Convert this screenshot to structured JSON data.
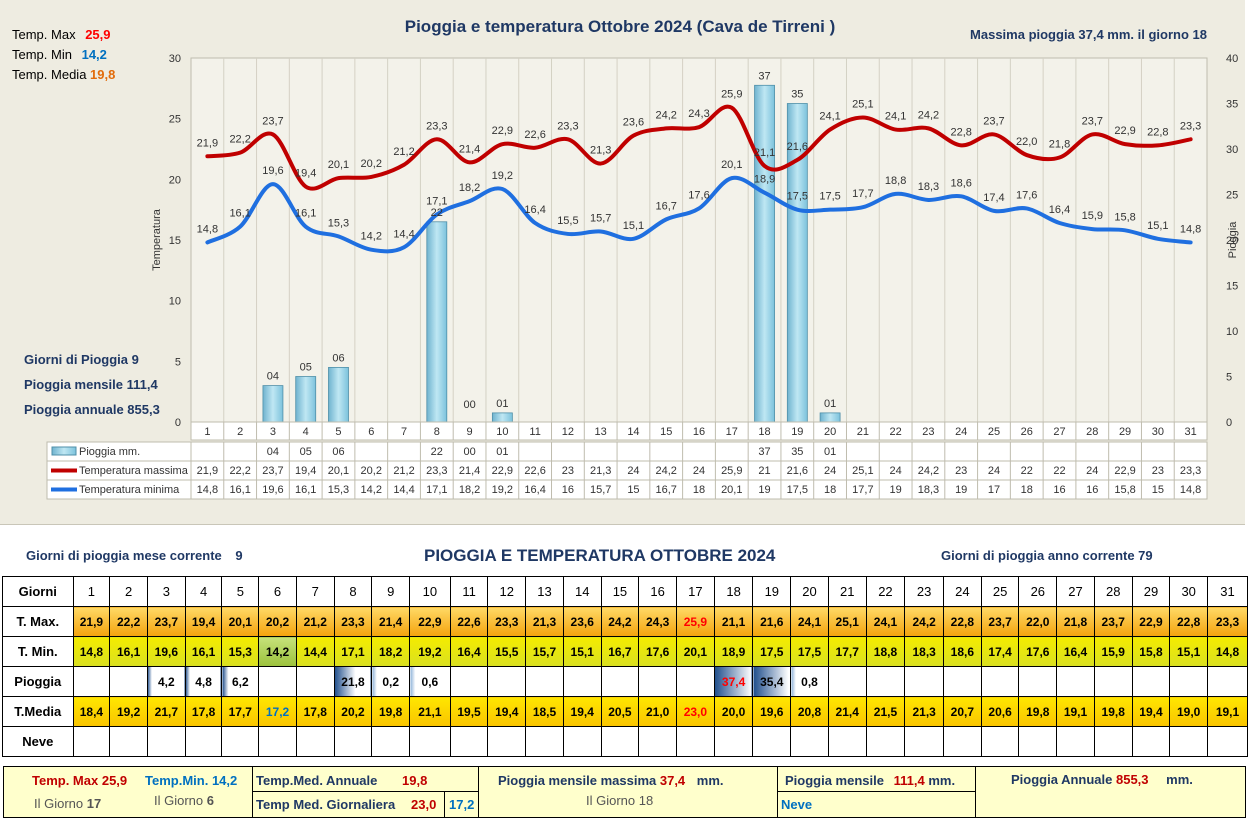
{
  "header": {
    "title": "Pioggia e temperatura Ottobre 2024 (Cava de Tirreni )",
    "max_rain_text": "Massima pioggia  37,4 mm. il giorno   18"
  },
  "stats_top": {
    "tmax_label": "Temp. Max",
    "tmax_value": "25,9",
    "tmin_label": "Temp. Min",
    "tmin_value": "14,2",
    "tmed_label": "Temp. Media",
    "tmed_value": "19,8"
  },
  "stats_left": {
    "rain_days": "Giorni di Pioggia  9",
    "monthly": "Pioggia mensile  111,4",
    "annual": "Pioggia annuale  855,3"
  },
  "chart_data": {
    "type": "line",
    "x": [
      1,
      2,
      3,
      4,
      5,
      6,
      7,
      8,
      9,
      10,
      11,
      12,
      13,
      14,
      15,
      16,
      17,
      18,
      19,
      20,
      21,
      22,
      23,
      24,
      25,
      26,
      27,
      28,
      29,
      30,
      31
    ],
    "ylabel": "Temperatura",
    "y2label": "Pioggia",
    "ylim": [
      0,
      30
    ],
    "y2lim": [
      0,
      40
    ],
    "yticks": [
      "0",
      "5",
      "10",
      "15",
      "20",
      "25",
      "30"
    ],
    "y2ticks": [
      "0",
      "5",
      "10",
      "15",
      "20",
      "25",
      "30",
      "35",
      "40"
    ],
    "series": [
      {
        "name": "Temperatura massima",
        "color": "#c00000",
        "values": [
          21.9,
          22.2,
          23.7,
          19.4,
          20.1,
          20.2,
          21.2,
          23.3,
          21.4,
          22.9,
          22.6,
          23.3,
          21.3,
          23.6,
          24.2,
          24.3,
          25.9,
          21.1,
          21.6,
          24.1,
          25.1,
          24.1,
          24.2,
          22.8,
          23.7,
          22.0,
          21.8,
          23.7,
          22.9,
          22.8,
          23.3
        ],
        "point_labels": [
          "21,9",
          "22,2",
          "23,7",
          "19,4",
          "20,1",
          "20,2",
          "21,2",
          "23,3",
          "21,4",
          "22,9",
          "22,6",
          "23,3",
          "21,3",
          "23,6",
          "24,2",
          "24,3",
          "25,9",
          "21,1",
          "21,6",
          "24,1",
          "25,1",
          "24,1",
          "24,2",
          "22,8",
          "23,7",
          "22,0",
          "21,8",
          "23,7",
          "22,9",
          "22,8",
          "23,3"
        ]
      },
      {
        "name": "Temperatura minima",
        "color": "#1f6fe0",
        "values": [
          14.8,
          16.1,
          19.6,
          16.1,
          15.3,
          14.2,
          14.4,
          17.1,
          18.2,
          19.2,
          16.4,
          15.5,
          15.7,
          15.1,
          16.7,
          17.6,
          20.1,
          18.9,
          17.5,
          17.5,
          17.7,
          18.8,
          18.3,
          18.6,
          17.4,
          17.6,
          16.4,
          15.9,
          15.8,
          15.1,
          14.8
        ],
        "point_labels": [
          "14,8",
          "16,1",
          "19,6",
          "16,1",
          "15,3",
          "14,2",
          "14,4",
          "17,1",
          "18,2",
          "19,2",
          "16,4",
          "15,5",
          "15,7",
          "15,1",
          "16,7",
          "17,6",
          "20,1",
          "18,9",
          "17,5",
          "17,5",
          "17,7",
          "18,8",
          "18,3",
          "18,6",
          "17,4",
          "17,6",
          "16,4",
          "15,9",
          "15,8",
          "15,1",
          "14,8"
        ]
      },
      {
        "name": "Pioggia mm.",
        "axis": "right",
        "type": "bar",
        "values": [
          0,
          0,
          4,
          5,
          6,
          0,
          0,
          22,
          0,
          1,
          0,
          0,
          0,
          0,
          0,
          0,
          0,
          37,
          35,
          1,
          0,
          0,
          0,
          0,
          0,
          0,
          0,
          0,
          0,
          0,
          0
        ],
        "point_labels": [
          "",
          "",
          "04",
          "05",
          "06",
          "",
          "",
          "22",
          "00",
          "01",
          "",
          "",
          "",
          "",
          "",
          "",
          "",
          "37",
          "35",
          "01",
          "",
          "",
          "",
          "",
          "",
          "",
          "",
          "",
          "",
          "",
          ""
        ]
      }
    ],
    "table_rows": [
      {
        "name": "Pioggia mm.",
        "cells": [
          "",
          "",
          "04",
          "05",
          "06",
          "",
          "",
          "22",
          "00",
          "01",
          "",
          "",
          "",
          "",
          "",
          "",
          "",
          "37",
          "35",
          "01",
          "",
          "",
          "",
          "",
          "",
          "",
          "",
          "",
          "",
          "",
          ""
        ]
      },
      {
        "name": "Temperatura massima",
        "cells": [
          "21,9",
          "22,2",
          "23,7",
          "19,4",
          "20,1",
          "20,2",
          "21,2",
          "23,3",
          "21,4",
          "22,9",
          "22,6",
          "23",
          "21,3",
          "24",
          "24,2",
          "24",
          "25,9",
          "21",
          "21,6",
          "24",
          "25,1",
          "24",
          "24,2",
          "23",
          "24",
          "22",
          "22",
          "24",
          "22,9",
          "23",
          "23,3"
        ]
      },
      {
        "name": "Temperatura minima",
        "cells": [
          "14,8",
          "16,1",
          "19,6",
          "16,1",
          "15,3",
          "14,2",
          "14,4",
          "17,1",
          "18,2",
          "19,2",
          "16,4",
          "16",
          "15,7",
          "15",
          "16,7",
          "18",
          "20,1",
          "19",
          "17,5",
          "18",
          "17,7",
          "19",
          "18,3",
          "19",
          "17",
          "18",
          "16",
          "16",
          "15,8",
          "15",
          "14,8"
        ]
      }
    ]
  },
  "table_section": {
    "title": "PIOGGIA E TEMPERATURA OTTOBRE 2024",
    "rain_days_month_label": "Giorni di pioggia",
    "rain_days_month_suffix": "mese corrente",
    "rain_days_month_value": "9",
    "rain_days_year": "Giorni di pioggia anno corrente    79"
  },
  "table": {
    "row_labels": [
      "Giorni",
      "T. Max.",
      "T. Min.",
      "Pioggia",
      "T.Media",
      "Neve"
    ],
    "days": [
      "1",
      "2",
      "3",
      "4",
      "5",
      "6",
      "7",
      "8",
      "9",
      "10",
      "11",
      "12",
      "13",
      "14",
      "15",
      "16",
      "17",
      "18",
      "19",
      "20",
      "21",
      "22",
      "23",
      "24",
      "25",
      "26",
      "27",
      "28",
      "29",
      "30",
      "31"
    ],
    "tmax": [
      "21,9",
      "22,2",
      "23,7",
      "19,4",
      "20,1",
      "20,2",
      "21,2",
      "23,3",
      "21,4",
      "22,9",
      "22,6",
      "23,3",
      "21,3",
      "23,6",
      "24,2",
      "24,3",
      "25,9",
      "21,1",
      "21,6",
      "24,1",
      "25,1",
      "24,1",
      "24,2",
      "22,8",
      "23,7",
      "22,0",
      "21,8",
      "23,7",
      "22,9",
      "22,8",
      "23,3"
    ],
    "tmin": [
      "14,8",
      "16,1",
      "19,6",
      "16,1",
      "15,3",
      "14,2",
      "14,4",
      "17,1",
      "18,2",
      "19,2",
      "16,4",
      "15,5",
      "15,7",
      "15,1",
      "16,7",
      "17,6",
      "20,1",
      "18,9",
      "17,5",
      "17,5",
      "17,7",
      "18,8",
      "18,3",
      "18,6",
      "17,4",
      "17,6",
      "16,4",
      "15,9",
      "15,8",
      "15,1",
      "14,8"
    ],
    "rain": [
      "",
      "",
      "4,2",
      "4,8",
      "6,2",
      "",
      "",
      "21,8",
      "0,2",
      "0,6",
      "",
      "",
      "",
      "",
      "",
      "",
      "",
      "37,4",
      "35,4",
      "0,8",
      "",
      "",
      "",
      "",
      "",
      "",
      "",
      "",
      "",
      "",
      ""
    ],
    "rain_values": [
      0,
      0,
      4.2,
      4.8,
      6.2,
      0,
      0,
      21.8,
      0.2,
      0.6,
      0,
      0,
      0,
      0,
      0,
      0,
      0,
      37.4,
      35.4,
      0.8,
      0,
      0,
      0,
      0,
      0,
      0,
      0,
      0,
      0,
      0,
      0
    ],
    "tmed": [
      "18,4",
      "19,2",
      "21,7",
      "17,8",
      "17,7",
      "17,2",
      "17,8",
      "20,2",
      "19,8",
      "21,1",
      "19,5",
      "19,4",
      "18,5",
      "19,4",
      "20,5",
      "21,0",
      "23,0",
      "20,0",
      "19,6",
      "20,8",
      "21,4",
      "21,5",
      "21,3",
      "20,7",
      "20,6",
      "19,8",
      "19,1",
      "19,8",
      "19,4",
      "19,0",
      "19,1"
    ],
    "neve": [
      "",
      "",
      "",
      "",
      "",
      "",
      "",
      "",
      "",
      "",
      "",
      "",
      "",
      "",
      "",
      "",
      "",
      "",
      "",
      "",
      "",
      "",
      "",
      "",
      "",
      "",
      "",
      "",
      "",
      "",
      ""
    ],
    "highlight": {
      "tmax_day": 17,
      "tmin_day": 6,
      "rain_day": 18,
      "tmed_max_day": 17,
      "tmed_min_day": 6
    }
  },
  "summary": {
    "tmax_label": "Temp. Max",
    "tmax_value": "25,9",
    "tmin_label": "Temp.Min.",
    "tmin_value": "14,2",
    "tmax_day_label": "Il Giorno",
    "tmax_day": "17",
    "tmin_day_label": "Il Giorno",
    "tmin_day": "6",
    "annual_med_label": "Temp.Med. Annuale",
    "annual_med_value": "19,8",
    "daily_med_label": "Temp Med. Giornaliera",
    "daily_med_value": "23,0",
    "daily_med_value2": "17,2",
    "max_month_rain_label": "Pioggia mensile massima",
    "max_month_rain_value": "37,4",
    "max_month_rain_unit": "mm.",
    "max_month_rain_day": "Il Giorno 18",
    "month_rain_label": "Pioggia mensile",
    "month_rain_value": "111,4",
    "month_rain_unit": "mm.",
    "snow_label": "Neve",
    "annual_rain_label": "Pioggia Annuale",
    "annual_rain_value": "855,3",
    "annual_rain_unit": "mm."
  },
  "colors": {
    "tmax_line": "#c00000",
    "tmin_line": "#1f6fe0",
    "title_blue": "#1f3864",
    "stat_red": "#ff0000",
    "stat_blue": "#0070c0",
    "stat_orange": "#e26b0a",
    "rain_bar": "#9bd3e8"
  }
}
